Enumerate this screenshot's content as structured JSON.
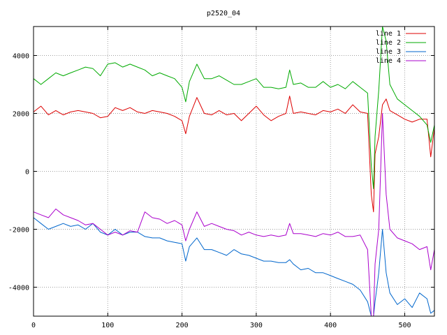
{
  "chart_data": {
    "type": "line",
    "title": "p2520_04",
    "xlabel": "",
    "ylabel": "",
    "xlim": [
      0,
      540
    ],
    "ylim": [
      -5000,
      5000
    ],
    "xticks": [
      0,
      100,
      200,
      300,
      400,
      500
    ],
    "yticks": [
      -4000,
      -2000,
      0,
      2000,
      4000
    ],
    "grid": true,
    "legend_position": "top-right",
    "x": [
      0,
      10,
      20,
      30,
      40,
      50,
      60,
      70,
      80,
      90,
      100,
      110,
      120,
      130,
      140,
      150,
      160,
      170,
      180,
      190,
      200,
      205,
      210,
      220,
      230,
      240,
      250,
      260,
      270,
      280,
      290,
      300,
      310,
      320,
      330,
      340,
      345,
      350,
      360,
      370,
      380,
      390,
      400,
      410,
      420,
      430,
      440,
      450,
      455,
      458,
      460,
      465,
      470,
      475,
      480,
      490,
      500,
      510,
      520,
      530,
      535,
      540
    ],
    "series": [
      {
        "name": "line 1",
        "color": "#dd0000",
        "values": [
          2050,
          2250,
          1950,
          2100,
          1950,
          2050,
          2100,
          2050,
          2000,
          1850,
          1900,
          2200,
          2100,
          2200,
          2050,
          2000,
          2100,
          2050,
          2000,
          1900,
          1750,
          1300,
          1900,
          2550,
          2000,
          1950,
          2100,
          1950,
          2000,
          1750,
          2000,
          2250,
          1950,
          1750,
          1900,
          2000,
          2600,
          2000,
          2050,
          2000,
          1950,
          2100,
          2050,
          2150,
          2000,
          2300,
          2050,
          2000,
          -800,
          -1400,
          600,
          1200,
          2300,
          2500,
          2100,
          1950,
          1800,
          1700,
          1800,
          1800,
          500,
          1500
        ]
      },
      {
        "name": "line 2",
        "color": "#00aa00",
        "values": [
          3200,
          3000,
          3200,
          3400,
          3300,
          3400,
          3500,
          3600,
          3550,
          3300,
          3700,
          3750,
          3600,
          3700,
          3600,
          3500,
          3300,
          3400,
          3300,
          3200,
          2900,
          2400,
          3100,
          3700,
          3200,
          3200,
          3300,
          3150,
          3000,
          3000,
          3100,
          3200,
          2900,
          2900,
          2850,
          2900,
          3500,
          3000,
          3050,
          2900,
          2900,
          3100,
          2900,
          3000,
          2850,
          3100,
          2900,
          2700,
          200,
          -600,
          1200,
          2800,
          5000,
          4500,
          3000,
          2500,
          2300,
          2100,
          1900,
          1600,
          1000,
          1600
        ]
      },
      {
        "name": "line 3",
        "color": "#0066cc",
        "values": [
          -1600,
          -1800,
          -2000,
          -1900,
          -1800,
          -1900,
          -1850,
          -2000,
          -1800,
          -2100,
          -2200,
          -2000,
          -2200,
          -2100,
          -2100,
          -2250,
          -2300,
          -2300,
          -2400,
          -2450,
          -2500,
          -3100,
          -2600,
          -2300,
          -2700,
          -2700,
          -2800,
          -2900,
          -2700,
          -2850,
          -2900,
          -3000,
          -3100,
          -3100,
          -3150,
          -3150,
          -3050,
          -3200,
          -3400,
          -3350,
          -3500,
          -3500,
          -3600,
          -3700,
          -3800,
          -3900,
          -4100,
          -4500,
          -5000,
          -5000,
          -4500,
          -3500,
          -2000,
          -3500,
          -4200,
          -4600,
          -4400,
          -4700,
          -4200,
          -4400,
          -4900,
          -4800
        ]
      },
      {
        "name": "line 4",
        "color": "#aa00cc",
        "values": [
          -1400,
          -1500,
          -1600,
          -1300,
          -1500,
          -1600,
          -1700,
          -1850,
          -1800,
          -2000,
          -2200,
          -2100,
          -2200,
          -2050,
          -2100,
          -1400,
          -1600,
          -1650,
          -1800,
          -1700,
          -1850,
          -2400,
          -2000,
          -1400,
          -1900,
          -1800,
          -1900,
          -2000,
          -2050,
          -2200,
          -2100,
          -2200,
          -2250,
          -2200,
          -2250,
          -2200,
          -1800,
          -2150,
          -2150,
          -2200,
          -2250,
          -2150,
          -2200,
          -2100,
          -2250,
          -2250,
          -2200,
          -2700,
          -5000,
          -5000,
          -3200,
          -2000,
          2000,
          -800,
          -2000,
          -2300,
          -2400,
          -2500,
          -2700,
          -2600,
          -3400,
          -2700
        ]
      }
    ]
  }
}
